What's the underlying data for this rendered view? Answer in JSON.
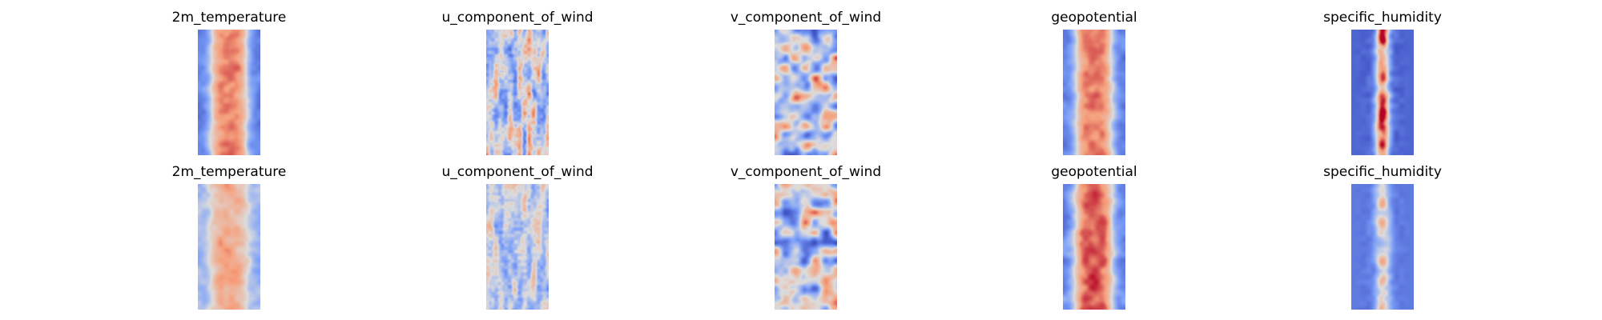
{
  "chart_data": [
    {
      "type": "heatmap",
      "title": "2m_temperature",
      "colormap": "coolwarm",
      "axes": "off",
      "pattern": "warm-band",
      "seed": 11
    },
    {
      "type": "heatmap",
      "title": "u_component_of_wind",
      "colormap": "coolwarm",
      "axes": "off",
      "pattern": "streaks",
      "seed": 23
    },
    {
      "type": "heatmap",
      "title": "v_component_of_wind",
      "colormap": "coolwarm",
      "axes": "off",
      "pattern": "eddies",
      "seed": 37
    },
    {
      "type": "heatmap",
      "title": "geopotential",
      "colormap": "coolwarm",
      "axes": "off",
      "pattern": "warm-band",
      "seed": 41
    },
    {
      "type": "heatmap",
      "title": "specific_humidity",
      "colormap": "coolwarm",
      "axes": "off",
      "pattern": "narrow-core",
      "seed": 53
    },
    {
      "type": "heatmap",
      "title": "2m_temperature",
      "colormap": "coolwarm",
      "axes": "off",
      "pattern": "soft-band",
      "seed": 61
    },
    {
      "type": "heatmap",
      "title": "u_component_of_wind",
      "colormap": "coolwarm",
      "axes": "off",
      "pattern": "streaks-faint",
      "seed": 71
    },
    {
      "type": "heatmap",
      "title": "v_component_of_wind",
      "colormap": "coolwarm",
      "axes": "off",
      "pattern": "eddies",
      "seed": 83
    },
    {
      "type": "heatmap",
      "title": "geopotential",
      "colormap": "coolwarm",
      "axes": "off",
      "pattern": "warm-band-strong",
      "seed": 97
    },
    {
      "type": "heatmap",
      "title": "specific_humidity",
      "colormap": "coolwarm",
      "axes": "off",
      "pattern": "narrow-core-faint",
      "seed": 103
    }
  ]
}
